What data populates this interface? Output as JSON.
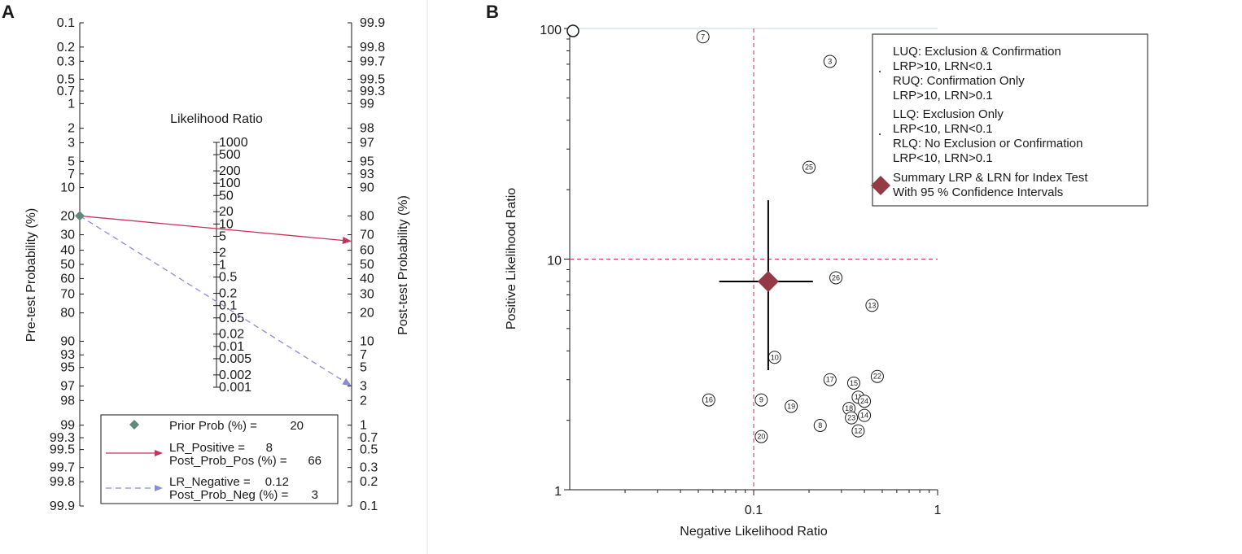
{
  "panels": {
    "a": "A",
    "b": "B"
  },
  "chart_data": [
    {
      "type": "nomogram",
      "title": "Likelihood Ratio",
      "left_axis_label": "Pre-test Probability (%)",
      "right_axis_label": "Post-test Probability (%)",
      "pre_ticks": [
        "0.1",
        "0.2",
        "0.3",
        "0.5",
        "0.7",
        "1",
        "2",
        "3",
        "5",
        "7",
        "10",
        "20",
        "30",
        "40",
        "50",
        "60",
        "70",
        "80",
        "90",
        "93",
        "95",
        "97",
        "98",
        "99",
        "99.3",
        "99.5",
        "99.7",
        "99.8",
        "99.9"
      ],
      "post_ticks": [
        "99.9",
        "99.8",
        "99.7",
        "99.5",
        "99.3",
        "99",
        "98",
        "97",
        "95",
        "93",
        "90",
        "80",
        "70",
        "60",
        "50",
        "40",
        "30",
        "20",
        "10",
        "7",
        "5",
        "3",
        "2",
        "1",
        "0.7",
        "0.5",
        "0.3",
        "0.2",
        "0.1"
      ],
      "lr_ticks": [
        "1000",
        "500",
        "200",
        "100",
        "50",
        "20",
        "10",
        "5",
        "2",
        "1",
        "0.5",
        "0.2",
        "0.1",
        "0.05",
        "0.02",
        "0.01",
        "0.005",
        "0.002",
        "0.001"
      ],
      "prior_prob": 20,
      "lr_positive": 8,
      "post_prob_pos": 66,
      "lr_negative": 0.12,
      "post_prob_neg": 3,
      "legend": {
        "prior_label": "Prior Prob (%) =",
        "prior_value": "20",
        "lrp_label": "LR_Positive =",
        "lrp_value": "8",
        "ppp_label": "Post_Prob_Pos (%) =",
        "ppp_value": "66",
        "lrn_label": "LR_Negative =",
        "lrn_value": "0.12",
        "ppn_label": "Post_Prob_Neg (%) =",
        "ppn_value": "3"
      },
      "colors": {
        "prior": "#5f8a78",
        "positive": "#c8325a",
        "negative": "#8c8cd2"
      }
    },
    {
      "type": "scatter",
      "xlabel": "Negative Likelihood Ratio",
      "ylabel": "Positive Likelihood Ratio",
      "xscale": "log",
      "yscale": "log",
      "xlim": [
        0.01,
        1
      ],
      "ylim": [
        1,
        100
      ],
      "x_tick_labels": [
        {
          "value": 0.1,
          "label": "0.1"
        },
        {
          "value": 1,
          "label": "1"
        }
      ],
      "y_tick_labels": [
        {
          "value": 1,
          "label": "1"
        },
        {
          "value": 10,
          "label": "10"
        },
        {
          "value": 100,
          "label": "100"
        }
      ],
      "reference_lines": {
        "lrn": 0.1,
        "lrp": 10
      },
      "summary": {
        "lrn": 0.12,
        "lrp": 8,
        "lrn_ci": [
          0.065,
          0.21
        ],
        "lrp_ci": [
          3.3,
          18
        ]
      },
      "studies": [
        {
          "id": "7",
          "lrn": 0.053,
          "lrp": 92
        },
        {
          "id": "3",
          "lrn": 0.26,
          "lrp": 72
        },
        {
          "id": "25",
          "lrn": 0.2,
          "lrp": 25
        },
        {
          "id": "26",
          "lrn": 0.28,
          "lrp": 8.3
        },
        {
          "id": "13",
          "lrn": 0.44,
          "lrp": 6.3
        },
        {
          "id": "10",
          "lrn": 0.13,
          "lrp": 3.75
        },
        {
          "id": "17",
          "lrn": 0.26,
          "lrp": 3.0
        },
        {
          "id": "15",
          "lrn": 0.35,
          "lrp": 2.9
        },
        {
          "id": "22",
          "lrn": 0.47,
          "lrp": 3.1
        },
        {
          "id": "11",
          "lrn": 0.37,
          "lrp": 2.52
        },
        {
          "id": "24",
          "lrn": 0.4,
          "lrp": 2.42
        },
        {
          "id": "16",
          "lrn": 0.057,
          "lrp": 2.45
        },
        {
          "id": "9",
          "lrn": 0.11,
          "lrp": 2.45
        },
        {
          "id": "19",
          "lrn": 0.16,
          "lrp": 2.3
        },
        {
          "id": "18",
          "lrn": 0.33,
          "lrp": 2.25
        },
        {
          "id": "23",
          "lrn": 0.34,
          "lrp": 2.05
        },
        {
          "id": "14",
          "lrn": 0.4,
          "lrp": 2.1
        },
        {
          "id": "8",
          "lrn": 0.23,
          "lrp": 1.9
        },
        {
          "id": "12",
          "lrn": 0.37,
          "lrp": 1.8
        },
        {
          "id": "20",
          "lrn": 0.11,
          "lrp": 1.7
        }
      ],
      "legend": {
        "luq_title": "LUQ: Exclusion & Confirmation",
        "luq_rule": "LRP>10, LRN<0.1",
        "ruq_title": "RUQ: Confirmation Only",
        "ruq_rule": "LRP>10, LRN>0.1",
        "llq_title": "LLQ: Exclusion Only",
        "llq_rule": "LRP<10, LRN<0.1",
        "rlq_title": "RLQ: No Exclusion or Confirmation",
        "rlq_rule": "LRP<10, LRN>0.1",
        "summary_line1": "Summary LRP & LRN for Index Test",
        "summary_line2": "With 95 % Confidence Intervals"
      },
      "colors": {
        "summary": "#943a44",
        "refline": "#c8325a"
      }
    }
  ]
}
